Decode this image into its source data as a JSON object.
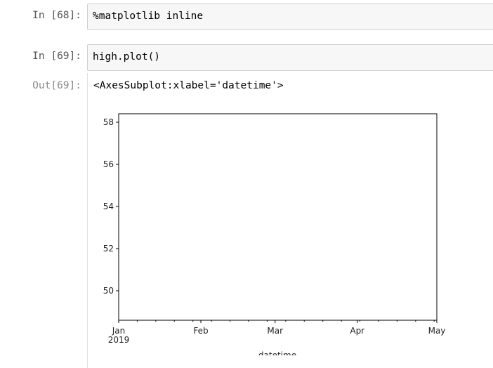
{
  "cells": [
    {
      "prompt": "In [68]:",
      "code": "%matplotlib inline"
    },
    {
      "prompt": "In [69]:",
      "code": "high.plot()"
    }
  ],
  "output": {
    "prompt": "Out[69]:",
    "text": "<AxesSubplot:xlabel='datetime'>"
  },
  "chart_data": {
    "type": "line",
    "series": [],
    "xlabel": "datetime",
    "ylabel": "",
    "title": "",
    "x_ticks": [
      "Jan\n2019",
      "Feb",
      "Mar",
      "Apr",
      "May"
    ],
    "x_tick_values": [
      "2019-01",
      "2019-02",
      "2019-03",
      "2019-04",
      "2019-05"
    ],
    "y_ticks": [
      50,
      52,
      54,
      56,
      58
    ],
    "ylim": [
      48.6,
      58.4
    ],
    "xlim": [
      "2019-01-01",
      "2019-05-01"
    ],
    "grid": false,
    "legend": "none"
  }
}
